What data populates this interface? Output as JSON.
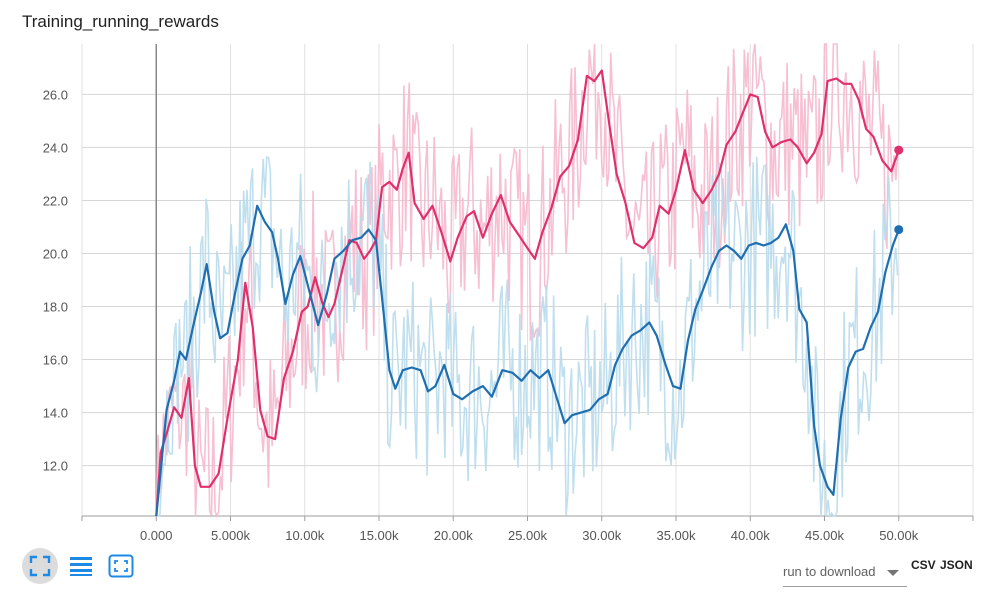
{
  "title": "Training_running_rewards",
  "download": {
    "label": "run to download",
    "csv": "CSV",
    "json": "JSON"
  },
  "toolbar": [
    {
      "name": "fit-domain-button",
      "icon": "fit-domain-icon",
      "active": true
    },
    {
      "name": "toggle-log-scale-button",
      "icon": "lines-icon",
      "active": false
    },
    {
      "name": "expand-chart-button",
      "icon": "expand-icon",
      "active": false
    }
  ],
  "colors": {
    "pink": "#e0306b",
    "pinkLight": "#f5b8cd",
    "blue": "#1f6fb0",
    "blueLight": "#b9dcec",
    "grid": "#e0e0e0"
  },
  "chart_data": {
    "type": "line",
    "title": "Training_running_rewards",
    "xlim": [
      -5000,
      55000
    ],
    "ylim": [
      10.1,
      27.9
    ],
    "x_ticks": [
      "0.000",
      "5.000k",
      "10.00k",
      "15.00k",
      "20.00k",
      "25.00k",
      "30.00k",
      "35.00k",
      "40.00k",
      "45.00k",
      "50.00k"
    ],
    "y_ticks": [
      "12.0",
      "14.0",
      "16.0",
      "18.0",
      "20.0",
      "22.0",
      "24.0",
      "26.0"
    ],
    "grid": true,
    "series": [
      {
        "color": "#e0306b",
        "raw_color": "#f5b8cd",
        "smoothed": [
          [
            0,
            10.1
          ],
          [
            300,
            12.5
          ],
          [
            700,
            13.2
          ],
          [
            1200,
            14.2
          ],
          [
            1700,
            13.8
          ],
          [
            2200,
            15.3
          ],
          [
            2600,
            12.0
          ],
          [
            3000,
            11.2
          ],
          [
            3600,
            11.2
          ],
          [
            4200,
            11.7
          ],
          [
            4800,
            13.8
          ],
          [
            5500,
            16.0
          ],
          [
            6000,
            18.9
          ],
          [
            6500,
            17.2
          ],
          [
            7000,
            14.1
          ],
          [
            7500,
            13.1
          ],
          [
            8000,
            13.0
          ],
          [
            8600,
            15.3
          ],
          [
            9200,
            16.3
          ],
          [
            9800,
            17.8
          ],
          [
            10200,
            18.0
          ],
          [
            10700,
            19.1
          ],
          [
            11200,
            18.1
          ],
          [
            11600,
            17.6
          ],
          [
            12000,
            18.1
          ],
          [
            12500,
            19.3
          ],
          [
            13000,
            20.5
          ],
          [
            13500,
            20.4
          ],
          [
            14000,
            19.8
          ],
          [
            14400,
            20.1
          ],
          [
            14800,
            20.5
          ],
          [
            15200,
            22.5
          ],
          [
            15700,
            22.7
          ],
          [
            16200,
            22.4
          ],
          [
            16600,
            23.2
          ],
          [
            17000,
            23.8
          ],
          [
            17400,
            21.9
          ],
          [
            18000,
            21.3
          ],
          [
            18600,
            21.8
          ],
          [
            19200,
            20.8
          ],
          [
            19800,
            19.7
          ],
          [
            20300,
            20.6
          ],
          [
            20900,
            21.4
          ],
          [
            21400,
            21.6
          ],
          [
            22000,
            20.6
          ],
          [
            22600,
            21.5
          ],
          [
            23200,
            22.2
          ],
          [
            23800,
            21.2
          ],
          [
            24400,
            20.7
          ],
          [
            25000,
            20.2
          ],
          [
            25500,
            19.8
          ],
          [
            26000,
            20.8
          ],
          [
            26600,
            21.7
          ],
          [
            27200,
            22.9
          ],
          [
            27800,
            23.3
          ],
          [
            28400,
            24.3
          ],
          [
            29000,
            26.7
          ],
          [
            29500,
            26.5
          ],
          [
            30000,
            26.9
          ],
          [
            30500,
            24.9
          ],
          [
            31000,
            23.0
          ],
          [
            31600,
            21.9
          ],
          [
            32200,
            20.4
          ],
          [
            32800,
            20.2
          ],
          [
            33400,
            20.6
          ],
          [
            33900,
            21.8
          ],
          [
            34500,
            21.5
          ],
          [
            35000,
            22.4
          ],
          [
            35600,
            23.9
          ],
          [
            36200,
            22.4
          ],
          [
            36800,
            21.9
          ],
          [
            37400,
            22.4
          ],
          [
            37900,
            23.0
          ],
          [
            38400,
            24.1
          ],
          [
            39000,
            24.6
          ],
          [
            39500,
            25.3
          ],
          [
            40000,
            26.0
          ],
          [
            40500,
            25.9
          ],
          [
            41000,
            24.6
          ],
          [
            41500,
            24.0
          ],
          [
            42100,
            24.2
          ],
          [
            42700,
            24.3
          ],
          [
            43200,
            24.0
          ],
          [
            43800,
            23.4
          ],
          [
            44300,
            23.8
          ],
          [
            44800,
            24.5
          ],
          [
            45200,
            26.5
          ],
          [
            45800,
            26.6
          ],
          [
            46300,
            26.4
          ],
          [
            46800,
            26.4
          ],
          [
            47300,
            25.8
          ],
          [
            47800,
            24.7
          ],
          [
            48300,
            24.4
          ],
          [
            48900,
            23.5
          ],
          [
            49500,
            23.1
          ],
          [
            50000,
            23.9
          ]
        ]
      },
      {
        "color": "#1f6fb0",
        "raw_color": "#b9dcec",
        "smoothed": [
          [
            0,
            10.1
          ],
          [
            300,
            11.8
          ],
          [
            700,
            14.1
          ],
          [
            1200,
            15.2
          ],
          [
            1600,
            16.3
          ],
          [
            2000,
            16.0
          ],
          [
            2500,
            17.3
          ],
          [
            3000,
            18.5
          ],
          [
            3400,
            19.6
          ],
          [
            3900,
            17.8
          ],
          [
            4300,
            16.8
          ],
          [
            4800,
            17.0
          ],
          [
            5300,
            18.5
          ],
          [
            5800,
            19.8
          ],
          [
            6300,
            20.3
          ],
          [
            6800,
            21.8
          ],
          [
            7300,
            21.2
          ],
          [
            7800,
            20.8
          ],
          [
            8200,
            19.8
          ],
          [
            8700,
            18.1
          ],
          [
            9200,
            19.2
          ],
          [
            9700,
            19.9
          ],
          [
            10300,
            18.6
          ],
          [
            10900,
            17.3
          ],
          [
            11500,
            18.5
          ],
          [
            12000,
            19.8
          ],
          [
            12600,
            20.1
          ],
          [
            13200,
            20.5
          ],
          [
            13800,
            20.6
          ],
          [
            14300,
            20.9
          ],
          [
            14800,
            20.5
          ],
          [
            15300,
            17.8
          ],
          [
            15700,
            15.6
          ],
          [
            16100,
            14.9
          ],
          [
            16600,
            15.6
          ],
          [
            17200,
            15.7
          ],
          [
            17800,
            15.6
          ],
          [
            18300,
            14.8
          ],
          [
            18800,
            15.0
          ],
          [
            19400,
            15.8
          ],
          [
            20000,
            14.7
          ],
          [
            20600,
            14.5
          ],
          [
            21300,
            14.8
          ],
          [
            22000,
            15.0
          ],
          [
            22600,
            14.6
          ],
          [
            23300,
            15.6
          ],
          [
            24000,
            15.5
          ],
          [
            24600,
            15.2
          ],
          [
            25200,
            15.6
          ],
          [
            25800,
            15.3
          ],
          [
            26400,
            15.6
          ],
          [
            27000,
            14.5
          ],
          [
            27500,
            13.6
          ],
          [
            28000,
            13.9
          ],
          [
            28600,
            14.0
          ],
          [
            29200,
            14.1
          ],
          [
            29800,
            14.5
          ],
          [
            30400,
            14.7
          ],
          [
            30900,
            15.8
          ],
          [
            31400,
            16.4
          ],
          [
            32000,
            16.9
          ],
          [
            32600,
            17.1
          ],
          [
            33200,
            17.4
          ],
          [
            33700,
            16.9
          ],
          [
            34300,
            15.8
          ],
          [
            34800,
            15.0
          ],
          [
            35300,
            14.9
          ],
          [
            35800,
            16.7
          ],
          [
            36300,
            17.9
          ],
          [
            36800,
            18.6
          ],
          [
            37400,
            19.5
          ],
          [
            37900,
            20.1
          ],
          [
            38400,
            20.3
          ],
          [
            38900,
            20.1
          ],
          [
            39400,
            19.8
          ],
          [
            39900,
            20.3
          ],
          [
            40400,
            20.4
          ],
          [
            40900,
            20.3
          ],
          [
            41400,
            20.4
          ],
          [
            41900,
            20.6
          ],
          [
            42400,
            21.1
          ],
          [
            42900,
            20.1
          ],
          [
            43300,
            17.9
          ],
          [
            43800,
            17.4
          ],
          [
            44300,
            13.5
          ],
          [
            44700,
            12.0
          ],
          [
            45200,
            11.2
          ],
          [
            45600,
            10.9
          ],
          [
            46100,
            13.8
          ],
          [
            46600,
            15.7
          ],
          [
            47100,
            16.3
          ],
          [
            47600,
            16.4
          ],
          [
            48100,
            17.2
          ],
          [
            48600,
            17.8
          ],
          [
            49100,
            19.3
          ],
          [
            49600,
            20.3
          ],
          [
            50000,
            20.9
          ]
        ]
      }
    ]
  }
}
